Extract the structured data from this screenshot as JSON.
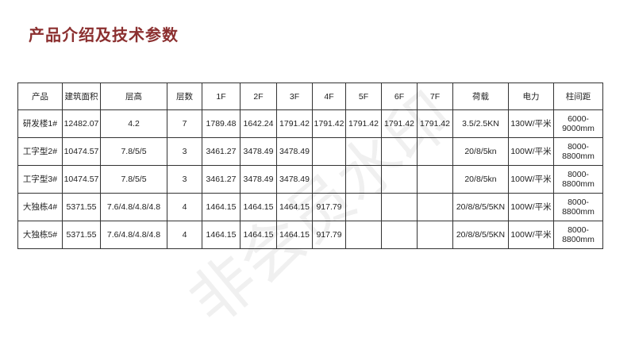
{
  "title": "产品介绍及技术参数",
  "watermark": "非会员水印",
  "table": {
    "headers": [
      "产品",
      "建筑面积",
      "层高",
      "层数",
      "1F",
      "2F",
      "3F",
      "4F",
      "5F",
      "6F",
      "7F",
      "荷载",
      "电力",
      "柱间距"
    ],
    "rows": [
      [
        "研发楼1#",
        "12482.07",
        "4.2",
        "7",
        "1789.48",
        "1642.24",
        "1791.42",
        "1791.42",
        "1791.42",
        "1791.42",
        "1791.42",
        "3.5/2.5KN",
        "130W/平米",
        "6000-9000mm"
      ],
      [
        "工字型2#",
        "10474.57",
        "7.8/5/5",
        "3",
        "3461.27",
        "3478.49",
        "3478.49",
        "",
        "",
        "",
        "",
        "20/8/5kn",
        "100W/平米",
        "8000-8800mm"
      ],
      [
        "工字型3#",
        "10474.57",
        "7.8/5/5",
        "3",
        "3461.27",
        "3478.49",
        "3478.49",
        "",
        "",
        "",
        "",
        "20/8/5kn",
        "100W/平米",
        "8000-8800mm"
      ],
      [
        "大独栋4#",
        "5371.55",
        "7.6/4.8/4.8/4.8",
        "4",
        "1464.15",
        "1464.15",
        "1464.15",
        "917.79",
        "",
        "",
        "",
        "20/8/8/5/5KN",
        "100W/平米",
        "8000-8800mm"
      ],
      [
        "大独栋5#",
        "5371.55",
        "7.6/4.8/4.8/4.8",
        "4",
        "1464.15",
        "1464.15",
        "1464.15",
        "917.79",
        "",
        "",
        "",
        "20/8/8/5/5KN",
        "100W/平米",
        "8000-8800mm"
      ]
    ]
  }
}
